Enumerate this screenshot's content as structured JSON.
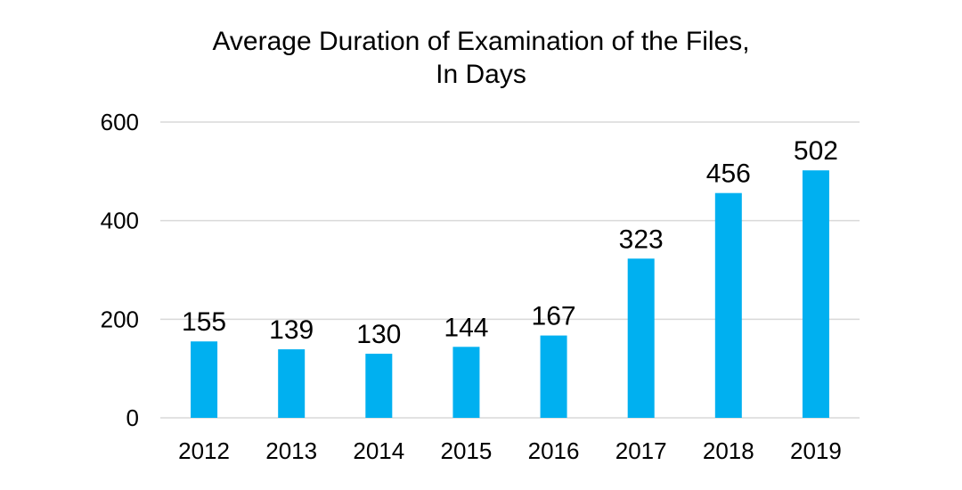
{
  "chart_data": {
    "type": "bar",
    "title_line1": "Average Duration of Examination of the Files,",
    "title_line2": "In Days",
    "categories": [
      "2012",
      "2013",
      "2014",
      "2015",
      "2016",
      "2017",
      "2018",
      "2019"
    ],
    "values": [
      155,
      139,
      130,
      144,
      167,
      323,
      456,
      502
    ],
    "ylim": [
      0,
      600
    ],
    "yticks": [
      0,
      200,
      400,
      600
    ],
    "grid": true,
    "bar_color": "#00b0f0",
    "data_labels": true
  }
}
